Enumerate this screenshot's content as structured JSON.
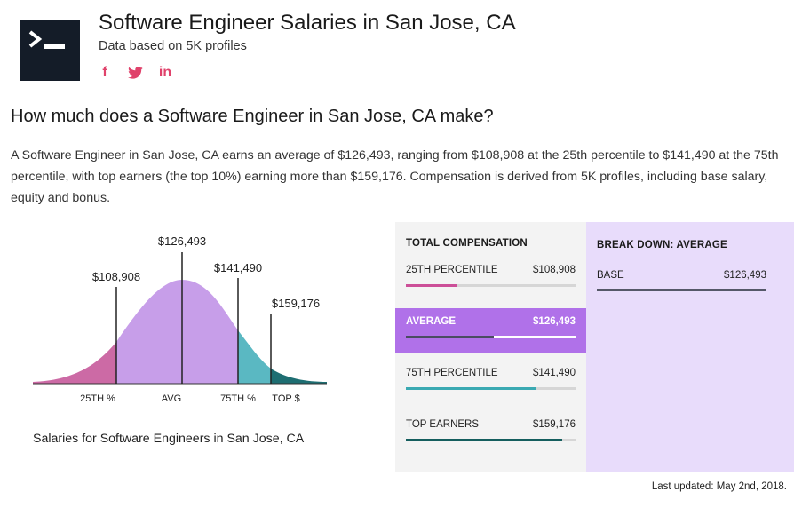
{
  "header": {
    "title": "Software Engineer Salaries in San Jose, CA",
    "subtitle": "Data based on 5K profiles",
    "logo_icon": "terminal-icon",
    "social": [
      {
        "icon": "facebook-icon",
        "glyph": "f"
      },
      {
        "icon": "twitter-icon",
        "glyph": "t"
      },
      {
        "icon": "linkedin-icon",
        "glyph": "in"
      }
    ]
  },
  "question": "How much does a Software Engineer in San Jose, CA make?",
  "description": "A Software Engineer in San Jose, CA earns an average of $126,493, ranging from $108,908 at the 25th percentile to $141,490 at the 75th percentile, with top earners (the top 10%) earning more than $159,176. Compensation is derived from 5K profiles, including base salary, equity and bonus.",
  "chart_data": {
    "type": "area",
    "title": "Salaries for Software Engineers in San Jose, CA",
    "segments": [
      {
        "label": "25TH %",
        "value": "$108,908",
        "color": "#cc6aa5"
      },
      {
        "label": "AVG",
        "value": "$126,493",
        "color": "#c79ee9"
      },
      {
        "label": "75TH %",
        "value": "$141,490",
        "color": "#5ab8c2"
      },
      {
        "label": "TOP $",
        "value": "$159,176",
        "color": "#1e6e72"
      }
    ]
  },
  "total_compensation": {
    "header": "TOTAL COMPENSATION",
    "rows": [
      {
        "label": "25TH PERCENTILE",
        "value": "$108,908",
        "fill_pct": 30,
        "color": "#cc4f98",
        "active": false
      },
      {
        "label": "AVERAGE",
        "value": "$126,493",
        "fill_pct": 52,
        "color": "#4a4c62",
        "active": true
      },
      {
        "label": "75TH PERCENTILE",
        "value": "$141,490",
        "fill_pct": 77,
        "color": "#3aa9b2",
        "active": false
      },
      {
        "label": "TOP EARNERS",
        "value": "$159,176",
        "fill_pct": 92,
        "color": "#155e5e",
        "active": false
      }
    ]
  },
  "breakdown": {
    "header": "BREAK DOWN: AVERAGE",
    "rows": [
      {
        "label": "BASE",
        "value": "$126,493"
      }
    ]
  },
  "footer": {
    "last_updated": "Last updated: May 2nd, 2018."
  }
}
